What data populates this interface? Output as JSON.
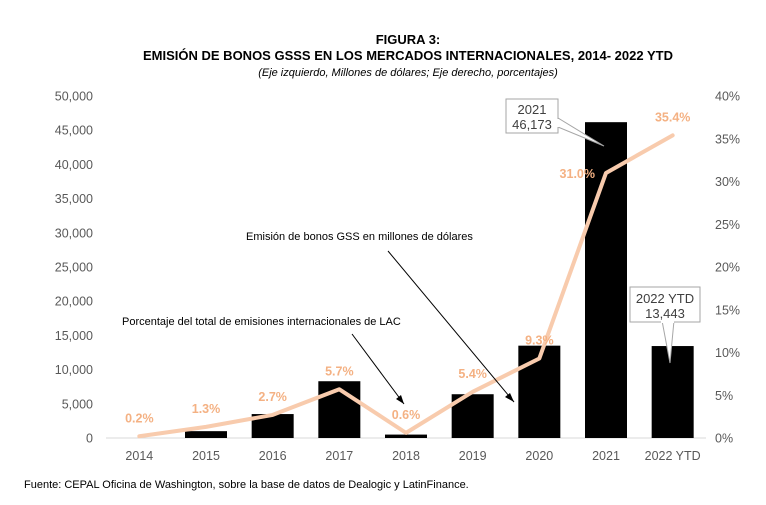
{
  "chart_data": {
    "type": "bar",
    "label": "FIGURA 3:",
    "title": "EMISIÓN DE BONOS GSSS EN LOS MERCADOS INTERNACIONALES, 2014- 2022 YTD",
    "subtitle": "(Eje izquierdo, Millones de dólares; Eje derecho, porcentajes)",
    "categories": [
      "2014",
      "2015",
      "2016",
      "2017",
      "2018",
      "2019",
      "2020",
      "2021",
      "2022 YTD"
    ],
    "series": [
      {
        "type": "bar",
        "axis": "left",
        "values": [
          0,
          1000,
          3500,
          8300,
          500,
          6400,
          13500,
          46173,
          13443
        ]
      },
      {
        "type": "line",
        "axis": "right",
        "values": [
          0.2,
          1.3,
          2.7,
          5.7,
          0.6,
          5.4,
          9.3,
          31.0,
          35.4
        ],
        "labels": [
          "0.2%",
          "1.3%",
          "2.7%",
          "5.7%",
          "0.6%",
          "5.4%",
          "9.3%",
          "31.0%",
          "35.4%"
        ]
      }
    ],
    "y_left": {
      "min": 0,
      "max": 50000,
      "ticks": [
        "0",
        "5,000",
        "10,000",
        "15,000",
        "20,000",
        "25,000",
        "30,000",
        "35,000",
        "40,000",
        "45,000",
        "50,000"
      ]
    },
    "y_right": {
      "min": 0,
      "max": 40,
      "ticks": [
        "0%",
        "5%",
        "10%",
        "15%",
        "20%",
        "25%",
        "30%",
        "35%",
        "40%"
      ]
    },
    "grid": false,
    "annotations": {
      "bonds": "Emisión de bonos GSS en millones de dólares",
      "share": "Porcentaje del total de emisiones internacionales de LAC"
    },
    "callouts": [
      {
        "line1": "2021",
        "line2": "46,173"
      },
      {
        "line1": "2022 YTD",
        "line2": "13,443"
      }
    ],
    "colors": {
      "bar": "#000000",
      "line": "#f8cbad",
      "line_label": "#f4b183",
      "axis_text": "#595959"
    },
    "source": "Fuente: CEPAL Oficina de Washington, sobre la base de datos de Dealogic y LatinFinance."
  }
}
